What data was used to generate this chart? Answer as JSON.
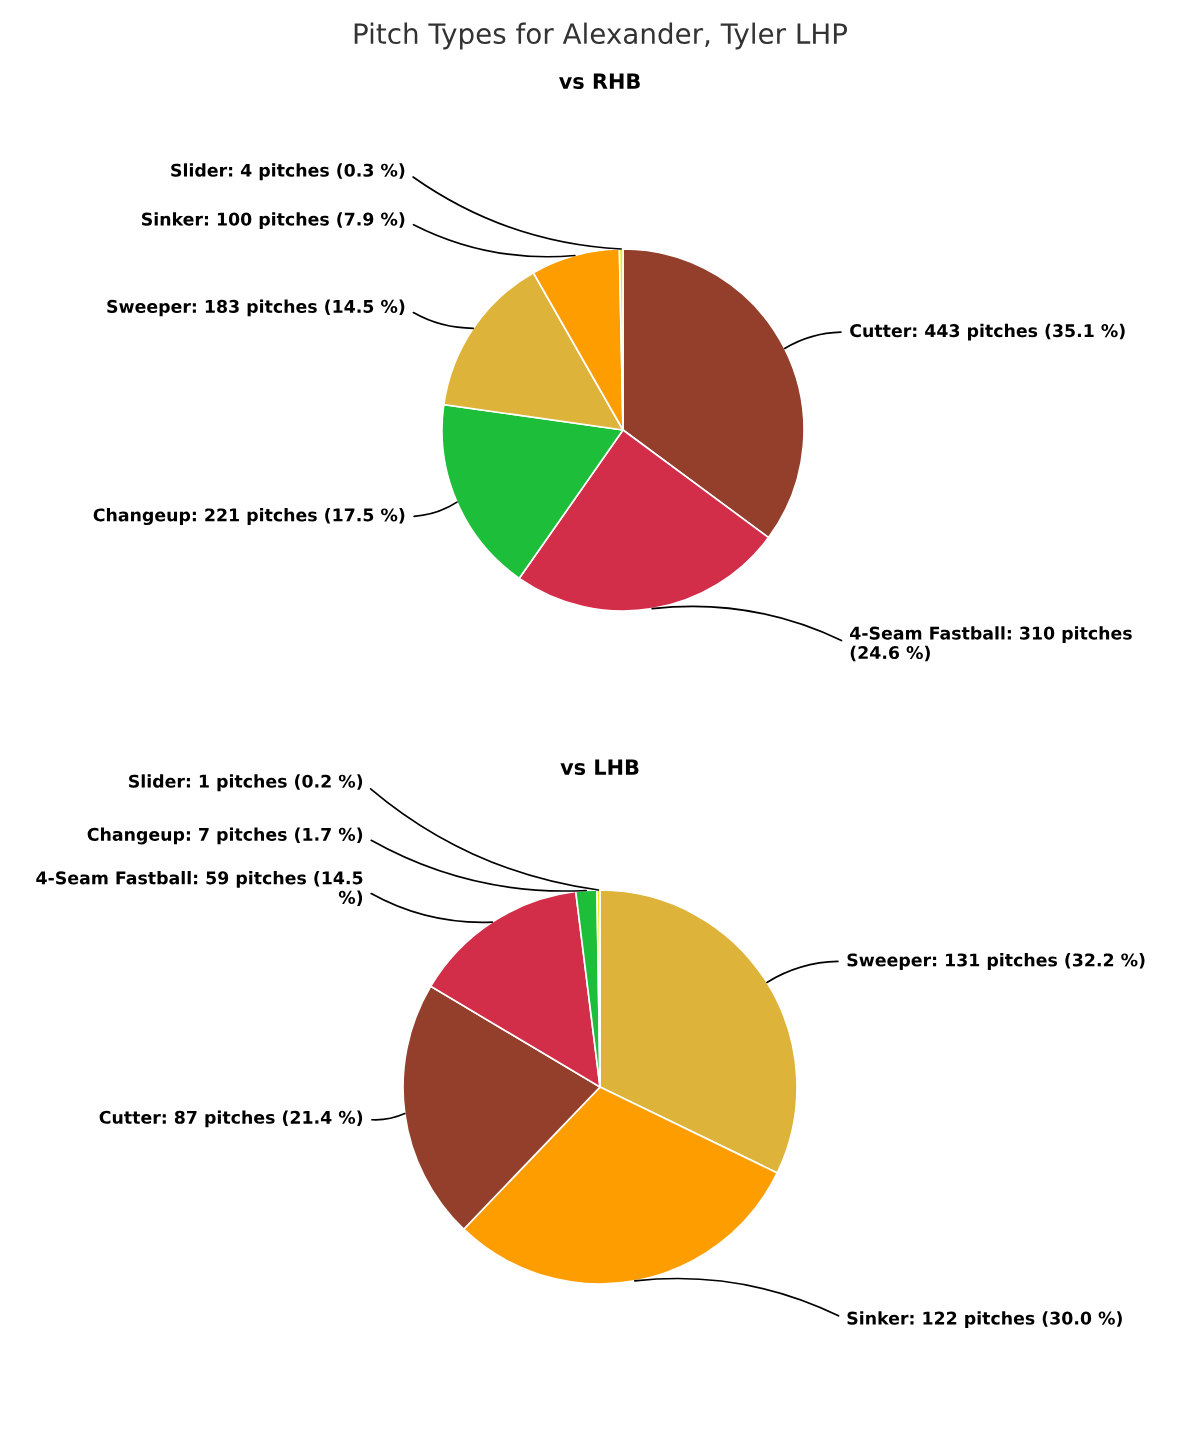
{
  "chart_data": [
    {
      "type": "pie",
      "title": "Pitch Types for Alexander, Tyler LHP",
      "subtitle": "vs RHB",
      "categories": [
        "Cutter",
        "4-Seam Fastball",
        "Changeup",
        "Sweeper",
        "Sinker",
        "Slider"
      ],
      "values": [
        443,
        310,
        221,
        183,
        100,
        4
      ],
      "value_labels": [
        "443 pitches (35.1 %)",
        "310 pitches (24.6 %)",
        "221 pitches (17.5 %)",
        "183 pitches (14.5 %)",
        "100 pitches (7.9 %)",
        "4 pitches (0.3 %)"
      ],
      "colors": [
        "#933f2c",
        "#d22d49",
        "#1dbe3a",
        "#ddb33a",
        "#fe9d00",
        "#eee716"
      ]
    },
    {
      "type": "pie",
      "title": "vs LHB",
      "categories": [
        "Sweeper",
        "Sinker",
        "Cutter",
        "4-Seam Fastball",
        "Changeup",
        "Slider"
      ],
      "values": [
        131,
        122,
        87,
        59,
        7,
        1
      ],
      "value_labels": [
        "131 pitches (32.2 %)",
        "122 pitches (30.0 %)",
        "87 pitches (21.4 %)",
        "59 pitches (14.5 %)",
        "7 pitches (1.7 %)",
        "1 pitches (0.2 %)"
      ],
      "colors": [
        "#ddb33a",
        "#fe9d00",
        "#933f2c",
        "#d22d49",
        "#1dbe3a",
        "#eee716"
      ]
    }
  ]
}
